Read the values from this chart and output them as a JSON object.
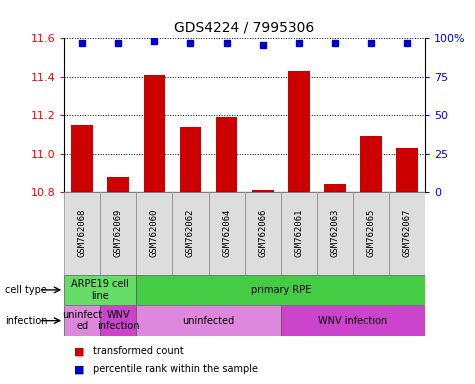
{
  "title": "GDS4224 / 7995306",
  "samples": [
    "GSM762068",
    "GSM762069",
    "GSM762060",
    "GSM762062",
    "GSM762064",
    "GSM762066",
    "GSM762061",
    "GSM762063",
    "GSM762065",
    "GSM762067"
  ],
  "transformed_counts": [
    11.15,
    10.88,
    11.41,
    11.14,
    11.19,
    10.81,
    11.43,
    10.84,
    11.09,
    11.03
  ],
  "percentile_ranks": [
    97,
    97,
    98,
    97,
    97,
    96,
    97,
    97,
    97,
    97
  ],
  "ylim": [
    10.8,
    11.6
  ],
  "yticks": [
    10.8,
    11.0,
    11.2,
    11.4,
    11.6
  ],
  "right_yticks": [
    0,
    25,
    50,
    75,
    100
  ],
  "bar_color": "#cc0000",
  "dot_color": "#0000cc",
  "cell_type_groups": [
    {
      "label": "ARPE19 cell\nline",
      "start": 0,
      "end": 2,
      "color": "#66dd66"
    },
    {
      "label": "primary RPE",
      "start": 2,
      "end": 10,
      "color": "#44cc44"
    }
  ],
  "infection_groups": [
    {
      "label": "uninfect\ned",
      "start": 0,
      "end": 1,
      "color": "#dd88dd"
    },
    {
      "label": "WNV\ninfection",
      "start": 1,
      "end": 2,
      "color": "#cc44cc"
    },
    {
      "label": "uninfected",
      "start": 2,
      "end": 6,
      "color": "#dd88dd"
    },
    {
      "label": "WNV infection",
      "start": 6,
      "end": 10,
      "color": "#cc44cc"
    }
  ],
  "bg_color": "#ffffff",
  "legend_items": [
    {
      "label": "transformed count",
      "color": "#cc0000"
    },
    {
      "label": "percentile rank within the sample",
      "color": "#0000cc"
    }
  ]
}
